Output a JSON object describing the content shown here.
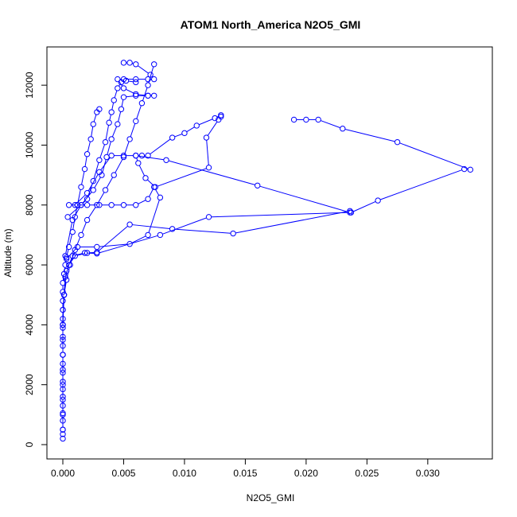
{
  "chart_data": {
    "type": "scatter",
    "title": "ATOM1 North_America N2O5_GMI",
    "xlabel": "N2O5_GMI",
    "ylabel": "Altitude (m)",
    "xlim": [
      0.0,
      0.034
    ],
    "ylim": [
      0,
      12800
    ],
    "xticks": [
      "0.000",
      "0.005",
      "0.010",
      "0.015",
      "0.020",
      "0.025",
      "0.030"
    ],
    "yticks": [
      "0",
      "2000",
      "4000",
      "6000",
      "8000",
      "10000",
      "12000"
    ],
    "grid": false,
    "legend": "none",
    "color": "#0000ff",
    "series": [
      {
        "values": [
          [
            0.0,
            200
          ],
          [
            0.0,
            350
          ],
          [
            0.0,
            500
          ],
          [
            0.0,
            800
          ],
          [
            0.0,
            1050
          ],
          [
            0.0,
            1300
          ],
          [
            0.0,
            1600
          ],
          [
            0.0,
            1850
          ],
          [
            0.0,
            2100
          ],
          [
            0.0,
            2400
          ],
          [
            0.0,
            2700
          ],
          [
            0.0,
            3000
          ],
          [
            0.0,
            3300
          ],
          [
            0.0,
            3600
          ],
          [
            0.0,
            3900
          ],
          [
            0.0,
            4200
          ],
          [
            0.0,
            4500
          ],
          [
            0.0,
            4800
          ],
          [
            0.0,
            5100
          ],
          [
            0.0,
            5400
          ],
          [
            0.0001,
            5700
          ],
          [
            0.0002,
            6000
          ],
          [
            0.0003,
            6250
          ],
          [
            0.0005,
            6600
          ],
          [
            0.0008,
            7100
          ],
          [
            0.001,
            7600
          ],
          [
            0.0012,
            8000
          ],
          [
            0.0015,
            8600
          ],
          [
            0.0018,
            9200
          ],
          [
            0.002,
            9700
          ],
          [
            0.0023,
            10200
          ],
          [
            0.0025,
            10700
          ],
          [
            0.0028,
            11100
          ],
          [
            0.003,
            11200
          ]
        ]
      },
      {
        "values": [
          [
            0.0,
            500
          ],
          [
            0.0,
            1000
          ],
          [
            0.0,
            1500
          ],
          [
            0.0,
            2000
          ],
          [
            0.0,
            2500
          ],
          [
            0.0,
            3000
          ],
          [
            0.0,
            3500
          ],
          [
            0.0,
            4000
          ],
          [
            0.0,
            4500
          ],
          [
            0.0001,
            5000
          ],
          [
            0.0003,
            5500
          ],
          [
            0.0006,
            6000
          ],
          [
            0.001,
            6500
          ],
          [
            0.0015,
            7000
          ],
          [
            0.002,
            7500
          ],
          [
            0.0028,
            8000
          ],
          [
            0.0035,
            8500
          ],
          [
            0.0042,
            9000
          ],
          [
            0.005,
            9600
          ],
          [
            0.0055,
            10200
          ],
          [
            0.006,
            10800
          ],
          [
            0.0065,
            11400
          ],
          [
            0.007,
            12000
          ],
          [
            0.0075,
            12700
          ]
        ]
      },
      {
        "values": [
          [
            0.0,
            3000
          ],
          [
            0.0,
            4000
          ],
          [
            0.0001,
            5000
          ],
          [
            0.0002,
            5600
          ],
          [
            0.0005,
            6000
          ],
          [
            0.001,
            6300
          ],
          [
            0.002,
            6400
          ],
          [
            0.0028,
            6420
          ],
          [
            0.0055,
            7350
          ],
          [
            0.009,
            7200
          ],
          [
            0.014,
            7050
          ],
          [
            0.0236,
            7800
          ],
          [
            0.0237,
            7750
          ],
          [
            0.0259,
            8150
          ],
          [
            0.033,
            9200
          ],
          [
            0.0335,
            9180
          ],
          [
            0.0275,
            10100
          ],
          [
            0.023,
            10550
          ],
          [
            0.021,
            10850
          ],
          [
            0.02,
            10850
          ],
          [
            0.019,
            10850
          ]
        ]
      },
      {
        "values": [
          [
            0.0,
            4000
          ],
          [
            0.0001,
            5000
          ],
          [
            0.0003,
            5800
          ],
          [
            0.0008,
            6300
          ],
          [
            0.0018,
            6400
          ],
          [
            0.0028,
            6380
          ],
          [
            0.008,
            7000
          ],
          [
            0.012,
            7600
          ],
          [
            0.0236,
            7750
          ],
          [
            0.016,
            8650
          ],
          [
            0.0085,
            9500
          ],
          [
            0.006,
            9650
          ],
          [
            0.0065,
            9650
          ],
          [
            0.007,
            9650
          ],
          [
            0.009,
            10250
          ],
          [
            0.01,
            10400
          ],
          [
            0.011,
            10650
          ],
          [
            0.0125,
            10900
          ],
          [
            0.013,
            11000
          ]
        ]
      },
      {
        "values": [
          [
            0.0003,
            6200
          ],
          [
            0.0012,
            6600
          ],
          [
            0.0028,
            6600
          ],
          [
            0.0055,
            6700
          ],
          [
            0.007,
            7000
          ],
          [
            0.008,
            8250
          ],
          [
            0.0075,
            8600
          ],
          [
            0.007,
            8200
          ],
          [
            0.006,
            8000
          ],
          [
            0.005,
            8000
          ],
          [
            0.004,
            8000
          ],
          [
            0.003,
            8000
          ],
          [
            0.002,
            8000
          ],
          [
            0.0012,
            8000
          ],
          [
            0.0005,
            8000
          ]
        ]
      },
      {
        "values": [
          [
            0.001,
            8000
          ],
          [
            0.002,
            8400
          ],
          [
            0.003,
            9100
          ],
          [
            0.004,
            9650
          ],
          [
            0.005,
            9650
          ],
          [
            0.006,
            9650
          ],
          [
            0.0062,
            9400
          ],
          [
            0.0068,
            8900
          ],
          [
            0.0076,
            8600
          ],
          [
            0.012,
            9250
          ],
          [
            0.0118,
            10250
          ],
          [
            0.0128,
            10850
          ],
          [
            0.013,
            10950
          ]
        ]
      },
      {
        "values": [
          [
            0.0004,
            7600
          ],
          [
            0.0015,
            8000
          ],
          [
            0.0025,
            8500
          ],
          [
            0.0032,
            9000
          ],
          [
            0.0036,
            9600
          ],
          [
            0.004,
            10200
          ],
          [
            0.0045,
            10700
          ],
          [
            0.0048,
            11200
          ],
          [
            0.005,
            11600
          ],
          [
            0.006,
            11650
          ],
          [
            0.007,
            11650
          ],
          [
            0.0075,
            11650
          ],
          [
            0.007,
            11650
          ],
          [
            0.006,
            11700
          ],
          [
            0.005,
            11900
          ],
          [
            0.0045,
            12200
          ],
          [
            0.005,
            12200
          ],
          [
            0.006,
            12200
          ],
          [
            0.007,
            12200
          ],
          [
            0.0075,
            12200
          ],
          [
            0.0072,
            12350
          ],
          [
            0.006,
            12700
          ],
          [
            0.0055,
            12750
          ],
          [
            0.005,
            12750
          ]
        ]
      },
      {
        "values": [
          [
            0.0002,
            6300
          ],
          [
            0.0008,
            7500
          ],
          [
            0.0015,
            8000
          ],
          [
            0.002,
            8200
          ],
          [
            0.0025,
            8800
          ],
          [
            0.003,
            9500
          ],
          [
            0.0035,
            10100
          ],
          [
            0.0038,
            10750
          ],
          [
            0.004,
            11100
          ],
          [
            0.0042,
            11500
          ],
          [
            0.0045,
            11900
          ],
          [
            0.0048,
            12100
          ],
          [
            0.0052,
            12150
          ],
          [
            0.006,
            12100
          ]
        ]
      }
    ]
  }
}
